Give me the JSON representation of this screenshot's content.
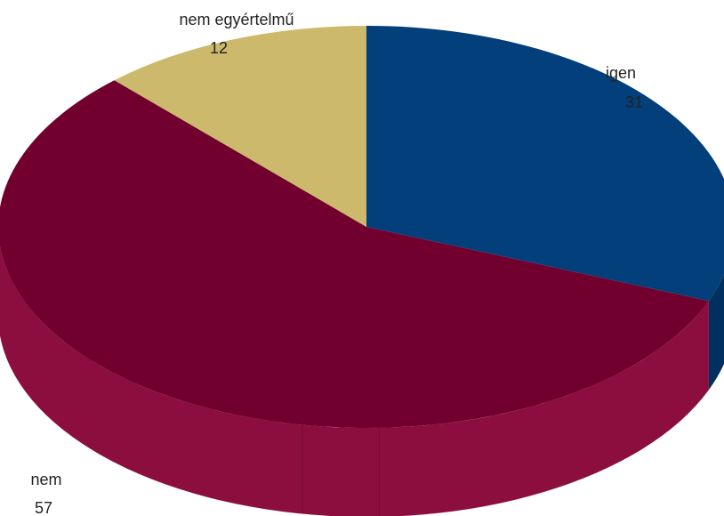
{
  "chart_data": {
    "type": "pie",
    "style": "3d",
    "title": "",
    "legend": "none",
    "slices": [
      {
        "label": "igen",
        "value": 31,
        "value_label": "31",
        "color": "#023f7b",
        "side_color": "#01305e"
      },
      {
        "label": "nem",
        "value": 57,
        "value_label": "57",
        "color": "#72002e",
        "side_color": "#8b0e3e"
      },
      {
        "label": "nem egyértelmű",
        "value": 12,
        "value_label": "12",
        "color": "#cdb96b",
        "side_color": "#a8954f"
      }
    ]
  }
}
